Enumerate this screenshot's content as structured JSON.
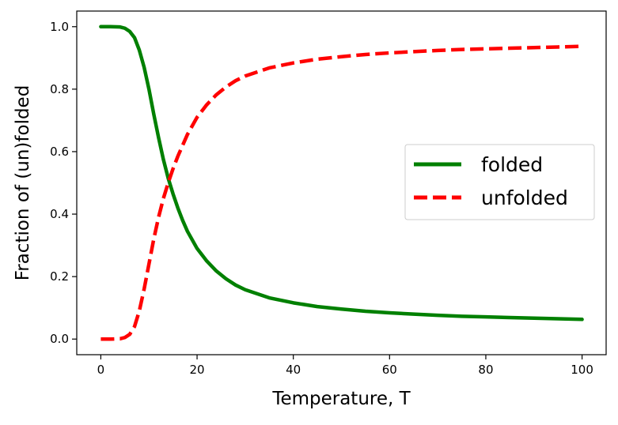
{
  "chart_data": {
    "type": "line",
    "title": "",
    "xlabel": "Temperature, T",
    "ylabel": "Fraction of (un)folded",
    "xlim": [
      -5,
      105
    ],
    "ylim": [
      -0.05,
      1.05
    ],
    "xticks": [
      0,
      20,
      40,
      60,
      80,
      100
    ],
    "yticks": [
      0.0,
      0.2,
      0.4,
      0.6,
      0.8,
      1.0
    ],
    "xtick_labels": [
      "0",
      "20",
      "40",
      "60",
      "80",
      "100"
    ],
    "ytick_labels": [
      "0.0",
      "0.2",
      "0.4",
      "0.6",
      "0.8",
      "1.0"
    ],
    "grid": false,
    "legend_position": "center-right",
    "x": [
      0,
      2,
      4,
      5,
      6,
      7,
      8,
      9,
      10,
      11,
      12,
      13,
      14,
      15,
      16,
      17,
      18,
      20,
      22,
      24,
      26,
      28,
      30,
      35,
      40,
      45,
      50,
      55,
      60,
      65,
      70,
      75,
      80,
      85,
      90,
      95,
      100
    ],
    "series": [
      {
        "name": "folded",
        "color": "#008000",
        "style": "solid",
        "values": [
          1.0,
          1.0,
          0.999,
          0.995,
          0.985,
          0.965,
          0.925,
          0.87,
          0.8,
          0.72,
          0.645,
          0.575,
          0.515,
          0.465,
          0.42,
          0.38,
          0.345,
          0.29,
          0.25,
          0.218,
          0.193,
          0.173,
          0.158,
          0.132,
          0.116,
          0.104,
          0.096,
          0.089,
          0.084,
          0.08,
          0.076,
          0.073,
          0.071,
          0.069,
          0.067,
          0.065,
          0.063
        ]
      },
      {
        "name": "unfolded",
        "color": "#ff0000",
        "style": "dashed",
        "values": [
          0.0,
          0.0,
          0.001,
          0.005,
          0.015,
          0.04,
          0.09,
          0.16,
          0.24,
          0.32,
          0.39,
          0.45,
          0.5,
          0.545,
          0.585,
          0.62,
          0.655,
          0.71,
          0.75,
          0.782,
          0.807,
          0.827,
          0.842,
          0.868,
          0.884,
          0.896,
          0.904,
          0.911,
          0.916,
          0.92,
          0.924,
          0.927,
          0.929,
          0.931,
          0.933,
          0.935,
          0.937
        ]
      }
    ]
  }
}
